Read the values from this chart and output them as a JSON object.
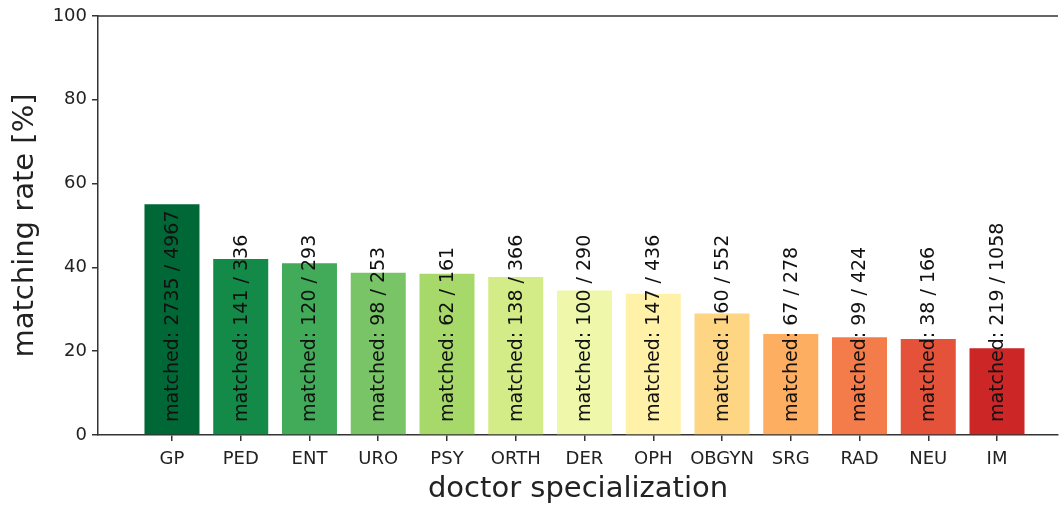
{
  "chart_data": {
    "type": "bar",
    "xlabel": "doctor specialization",
    "ylabel": "matching rate [%]",
    "categories": [
      "GP",
      "PED",
      "ENT",
      "URO",
      "PSY",
      "ORTH",
      "DER",
      "OPH",
      "OBGYN",
      "SRG",
      "RAD",
      "NEU",
      "IM"
    ],
    "values": [
      55.1,
      42.0,
      41.0,
      38.7,
      38.5,
      37.7,
      34.5,
      33.7,
      29.0,
      24.1,
      23.3,
      22.9,
      20.7
    ],
    "colors": [
      "#006837",
      "#138a47",
      "#42ab5a",
      "#78c466",
      "#a6d96a",
      "#d3ec87",
      "#eff8aa",
      "#fff1a8",
      "#fed683",
      "#fdae61",
      "#f47c4a",
      "#e5523a",
      "#cc2627"
    ],
    "value_labels": [
      "matched: 2735 / 4967",
      "matched: 141 / 336",
      "matched: 120 / 293",
      "matched: 98 / 253",
      "matched: 62 / 161",
      "matched: 138 / 366",
      "matched: 100 / 290",
      "matched: 147 / 436",
      "matched: 160 / 552",
      "matched: 67 / 278",
      "matched: 99 / 424",
      "matched: 38 / 166",
      "matched: 219 / 1058"
    ],
    "ylim": [
      0,
      100
    ],
    "yticks": [
      0,
      20,
      40,
      60,
      80,
      100
    ],
    "grid": false,
    "legend": false
  }
}
